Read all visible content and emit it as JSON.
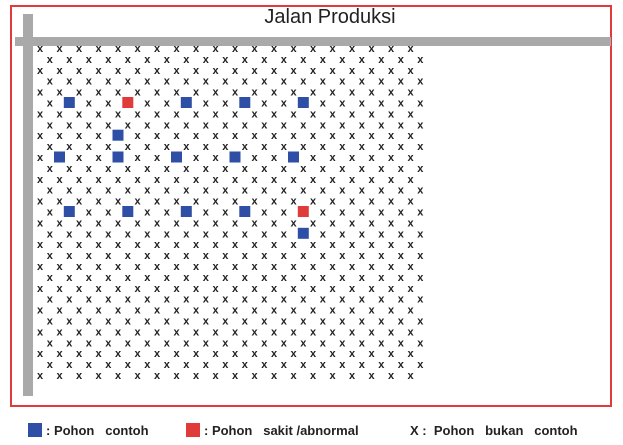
{
  "title": "Jalan Produksi",
  "colors": {
    "border": "#e03a3a",
    "road": "#a9a9a9",
    "sample": "#2e4fa5",
    "sick": "#e03a3a",
    "mark": "#222222"
  },
  "grid": {
    "columns": 20,
    "rows": 31,
    "mark_symbol": "x"
  },
  "sample_trees": [
    {
      "col": 1,
      "row": 5
    },
    {
      "col": 4,
      "row": 8
    },
    {
      "col": 1,
      "row": 10
    },
    {
      "col": 4,
      "row": 10
    },
    {
      "col": 7,
      "row": 5
    },
    {
      "col": 7,
      "row": 10
    },
    {
      "col": 10,
      "row": 5
    },
    {
      "col": 10,
      "row": 10
    },
    {
      "col": 13,
      "row": 5
    },
    {
      "col": 13,
      "row": 10
    },
    {
      "col": 1,
      "row": 15
    },
    {
      "col": 4,
      "row": 15
    },
    {
      "col": 7,
      "row": 15
    },
    {
      "col": 10,
      "row": 15
    },
    {
      "col": 13,
      "row": 17
    }
  ],
  "sick_trees": [
    {
      "col": 4,
      "row": 5
    },
    {
      "col": 13,
      "row": 15
    }
  ],
  "legend": {
    "sample_label": ": Pohon   contoh",
    "sick_label": ": Pohon   sakit /abnormal",
    "nonsample_label": "X :  Pohon   bukan   contoh"
  }
}
